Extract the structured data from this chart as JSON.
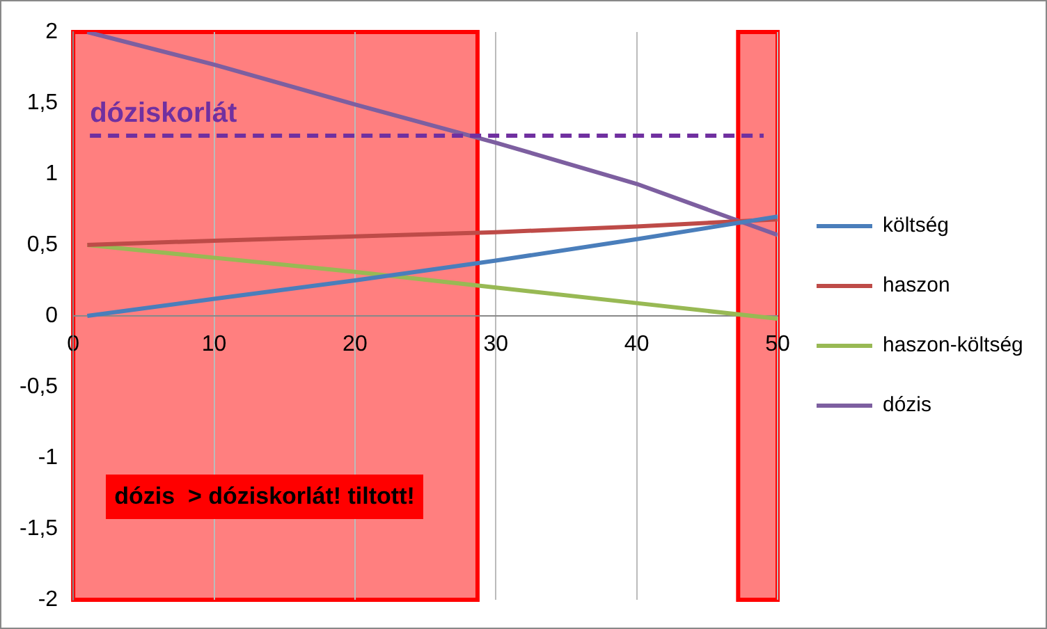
{
  "chart_data": {
    "type": "line",
    "x": [
      1,
      10,
      20,
      30,
      40,
      50
    ],
    "series": [
      {
        "name": "költség",
        "color": "#4a7ebb",
        "values": [
          0,
          0.12,
          0.25,
          0.39,
          0.54,
          0.7
        ]
      },
      {
        "name": "haszon",
        "color": "#be4b48",
        "values": [
          0.5,
          0.53,
          0.56,
          0.59,
          0.63,
          0.68
        ]
      },
      {
        "name": "haszon-költség",
        "color": "#98b954",
        "values": [
          0.5,
          0.41,
          0.31,
          0.2,
          0.09,
          -0.02
        ]
      },
      {
        "name": "dózis",
        "color": "#7d5fa0",
        "values": [
          2,
          1.77,
          1.49,
          1.22,
          0.93,
          0.57
        ]
      }
    ],
    "xlim": [
      0,
      50
    ],
    "xticks": [
      0,
      10,
      20,
      30,
      40,
      50
    ],
    "ylim": [
      -2,
      2
    ],
    "yticks": [
      {
        "value": -2,
        "label": "-2"
      },
      {
        "value": -1.5,
        "label": "-1,5"
      },
      {
        "value": -1,
        "label": "-1"
      },
      {
        "value": -0.5,
        "label": "-0,5"
      },
      {
        "value": 0,
        "label": "0"
      },
      {
        "value": 0.5,
        "label": "0,5"
      },
      {
        "value": 1,
        "label": "1"
      },
      {
        "value": 1.5,
        "label": "1,5"
      },
      {
        "value": 2,
        "label": "2"
      }
    ],
    "grid": "x",
    "legend": "right",
    "marker": "none",
    "line_style": "solid",
    "ref_lines": [
      {
        "axis": "y",
        "value": 1.27,
        "label": "dóziskorlát",
        "color": "#7030a0",
        "line_style": "dashed"
      }
    ],
    "bands": [
      {
        "axis": "x",
        "from": 0,
        "to": 28.7,
        "color": "#ff0000"
      },
      {
        "axis": "x",
        "from": 47.2,
        "to": 50,
        "color": "#ff0000"
      }
    ],
    "annotations": [
      "dózis  > dóziskorlát! tiltott!"
    ]
  }
}
